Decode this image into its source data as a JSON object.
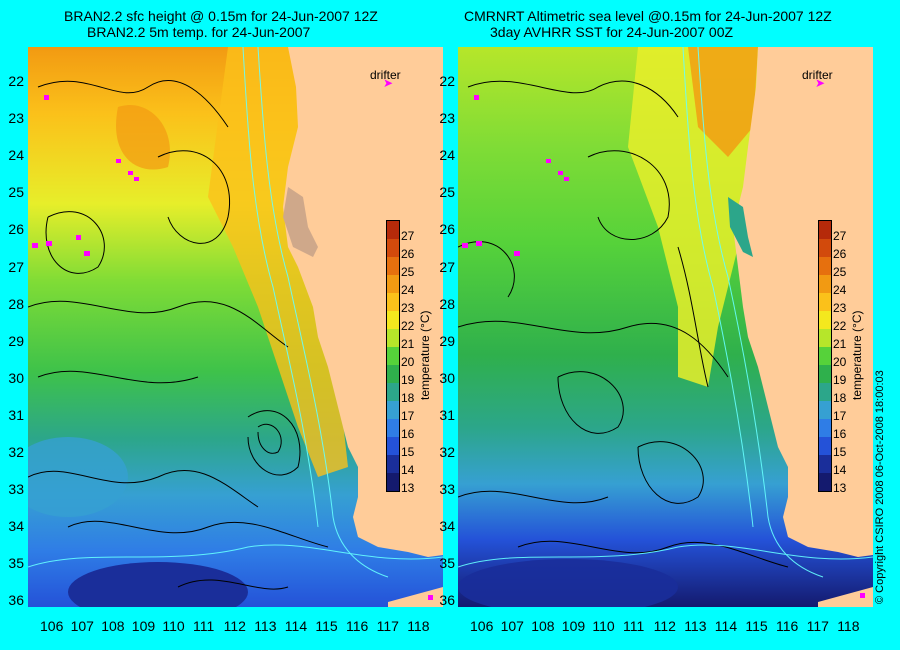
{
  "left_panel": {
    "title_line1": "BRAN2.2 sfc height @ 0.15m for 24-Jun-2007 12Z",
    "title_line2": "BRAN2.2 5m temp. for 24-Jun-2007"
  },
  "right_panel": {
    "title_line1": "CMRNRT Altimetric sea level  @0.15m  for 24-Jun-2007 12Z",
    "title_line2": "3day AVHRR SST for 24-Jun-2007 00Z"
  },
  "drifter_label": "drifter",
  "colorbar": {
    "title": "temperature (°C)",
    "ticks": [
      "27",
      "26",
      "25",
      "24",
      "23",
      "22",
      "21",
      "20",
      "19",
      "18",
      "17",
      "16",
      "15",
      "14",
      "13"
    ],
    "colors": [
      "#b52a0a",
      "#d24a0c",
      "#e6700e",
      "#f29a12",
      "#fbc11a",
      "#f4e81e",
      "#b6e62a",
      "#56d23a",
      "#2fb04c",
      "#2ca68a",
      "#36a0d2",
      "#2f7de6",
      "#2452d8",
      "#1a2e9a",
      "#141a6e"
    ]
  },
  "latitude_labels": [
    "22",
    "23",
    "24",
    "25",
    "26",
    "27",
    "28",
    "29",
    "30",
    "31",
    "32",
    "33",
    "34",
    "35",
    "36"
  ],
  "longitude_labels": [
    "106",
    "107",
    "108",
    "109",
    "110",
    "111",
    "112",
    "113",
    "114",
    "115",
    "116",
    "117",
    "118"
  ],
  "copyright": "© Copyright CSIRO 2008    06-Oct-2008 18:00:03",
  "colors": {
    "background": "#00ffff",
    "land": "#ffcc99",
    "drifter": "#ff00ff",
    "contour": "#000000",
    "isobath": "#66ffff"
  }
}
